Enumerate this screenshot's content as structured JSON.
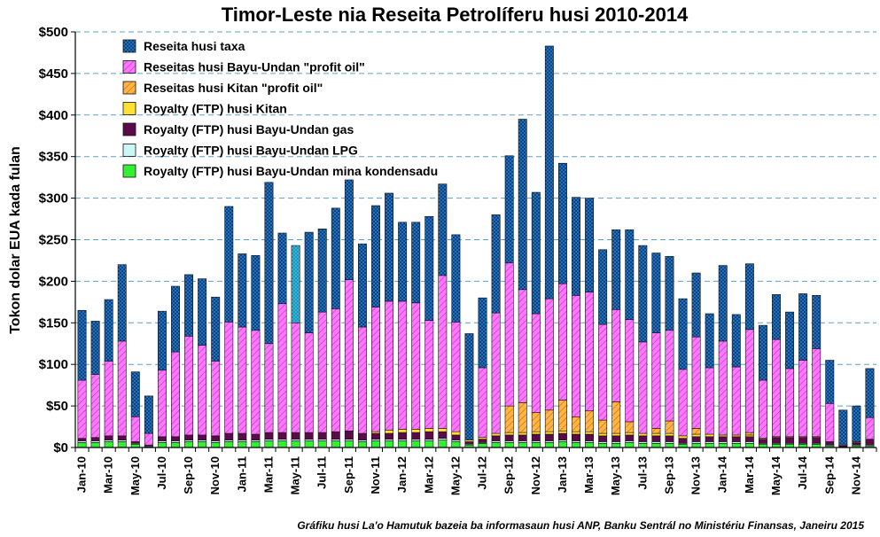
{
  "chart_data": {
    "type": "bar",
    "stacked": true,
    "title": "Timor-Leste nia Reseita Petrolíferu husi 2010-2014",
    "ylabel": "Tokon dolar EUA kada fulan",
    "source": "Gráfiku husi La'o Hamutuk bazeia ba informasaun husi ANP, Banku Sentrál no Ministériu Finansas, Janeiru 2015",
    "ylim": [
      0,
      500
    ],
    "yticks": [
      "$0",
      "$50",
      "$100",
      "$150",
      "$200",
      "$250",
      "$300",
      "$350",
      "$400",
      "$450",
      "$500"
    ],
    "ytick_values": [
      0,
      50,
      100,
      150,
      200,
      250,
      300,
      350,
      400,
      450,
      500
    ],
    "grid": "horizontal-dashed",
    "legend_position": "top-left",
    "categories": [
      "Jan-10",
      "Feb-10",
      "Mar-10",
      "Apr-10",
      "May-10",
      "Jun-10",
      "Jul-10",
      "Aug-10",
      "Sep-10",
      "Oct-10",
      "Nov-10",
      "Dec-10",
      "Jan-11",
      "Feb-11",
      "Mar-11",
      "Apr-11",
      "May-11",
      "Jun-11",
      "Jul-11",
      "Aug-11",
      "Sep-11",
      "Oct-11",
      "Nov-11",
      "Dec-11",
      "Jan-12",
      "Feb-12",
      "Mar-12",
      "Apr-12",
      "May-12",
      "Jun-12",
      "Jul-12",
      "Aug-12",
      "Sep-12",
      "Oct-12",
      "Nov-12",
      "Dec-12",
      "Jan-13",
      "Feb-13",
      "Mar-13",
      "Apr-13",
      "May-13",
      "Jun-13",
      "Jul-13",
      "Aug-13",
      "Sep-13",
      "Oct-13",
      "Nov-13",
      "Dec-13",
      "Jan-14",
      "Feb-14",
      "Mar-14",
      "Apr-14",
      "May-14",
      "Jun-14",
      "Jul-14",
      "Aug-14",
      "Sep-14",
      "Oct-14",
      "Nov-14",
      "Dec-14"
    ],
    "xtick_labels": [
      "Jan-10",
      "",
      "Mar-10",
      "",
      "May-10",
      "",
      "Jul-10",
      "",
      "Sep-10",
      "",
      "Nov-10",
      "",
      "Jan-11",
      "",
      "Mar-11",
      "",
      "May-11",
      "",
      "Jul-11",
      "",
      "Sep-11",
      "",
      "Nov-11",
      "",
      "Jan-12",
      "",
      "Mar-12",
      "",
      "May-12",
      "",
      "Jul-12",
      "",
      "Sep-12",
      "",
      "Nov-12",
      "",
      "Jan-13",
      "",
      "Mar-13",
      "",
      "May-13",
      "",
      "Jul-13",
      "",
      "Sep-13",
      "",
      "Nov-13",
      "",
      "Jan-14",
      "",
      "Mar-14",
      "",
      "May-14",
      "",
      "Jul-14",
      "",
      "Sep-14",
      "",
      "Nov-14",
      ""
    ],
    "series": [
      {
        "name": "Royalty (FTP) husi Bayu-Undan mina kondensadu",
        "color": "#33ee33",
        "pattern": "solid",
        "values": [
          6,
          6,
          7,
          7,
          4,
          1,
          6,
          6,
          7,
          7,
          6,
          7,
          7,
          7,
          8,
          8,
          8,
          8,
          8,
          8,
          8,
          7,
          8,
          8,
          8,
          8,
          8,
          9,
          7,
          3,
          5,
          6,
          6,
          6,
          6,
          6,
          7,
          6,
          6,
          5,
          5,
          6,
          5,
          5,
          5,
          4,
          5,
          5,
          5,
          5,
          5,
          4,
          4,
          4,
          4,
          4,
          2,
          1,
          2,
          2
        ]
      },
      {
        "name": "Royalty (FTP) husi Bayu-Undan LPG",
        "color": "#ccf5f5",
        "pattern": "solid",
        "values": [
          2,
          2,
          2,
          2,
          1,
          1,
          2,
          2,
          2,
          2,
          2,
          2,
          2,
          2,
          2,
          2,
          2,
          2,
          2,
          2,
          2,
          2,
          2,
          2,
          2,
          2,
          2,
          2,
          2,
          1,
          1,
          2,
          2,
          2,
          2,
          2,
          2,
          2,
          2,
          2,
          2,
          2,
          2,
          2,
          2,
          1,
          2,
          2,
          2,
          2,
          2,
          1,
          1,
          1,
          1,
          1,
          1,
          0,
          1,
          1
        ]
      },
      {
        "name": "Royalty (FTP) husi Bayu-Undan gas",
        "color": "#5b0a4a",
        "pattern": "solid",
        "values": [
          3,
          4,
          5,
          5,
          2,
          1,
          5,
          5,
          6,
          6,
          6,
          8,
          8,
          7,
          8,
          8,
          8,
          8,
          8,
          9,
          10,
          8,
          7,
          7,
          8,
          8,
          9,
          8,
          6,
          3,
          4,
          6,
          7,
          7,
          8,
          8,
          8,
          8,
          8,
          7,
          7,
          7,
          7,
          7,
          7,
          6,
          6,
          6,
          6,
          6,
          6,
          5,
          7,
          7,
          7,
          7,
          4,
          1,
          2,
          7
        ]
      },
      {
        "name": "Royalty (FTP) husi Kitan",
        "color": "#ffe033",
        "pattern": "solid",
        "values": [
          0,
          0,
          0,
          0,
          0,
          0,
          0,
          0,
          0,
          0,
          0,
          0,
          0,
          0,
          0,
          0,
          0,
          0,
          0,
          0,
          0,
          0,
          2,
          4,
          4,
          4,
          4,
          4,
          4,
          2,
          2,
          3,
          3,
          3,
          3,
          3,
          3,
          3,
          3,
          3,
          3,
          3,
          3,
          3,
          3,
          3,
          3,
          3,
          2,
          2,
          2,
          1,
          1,
          1,
          1,
          1,
          0,
          0,
          1,
          0
        ]
      },
      {
        "name": "Reseitas husi Kitan \"profit oil\"",
        "color": "#ff9900",
        "pattern": "hatch",
        "values": [
          0,
          0,
          0,
          0,
          0,
          0,
          0,
          0,
          0,
          0,
          0,
          0,
          0,
          0,
          0,
          0,
          0,
          0,
          0,
          0,
          0,
          0,
          0,
          0,
          0,
          0,
          0,
          0,
          0,
          0,
          0,
          0,
          32,
          36,
          23,
          26,
          37,
          18,
          25,
          16,
          38,
          13,
          0,
          6,
          15,
          0,
          7,
          0,
          0,
          0,
          3,
          0,
          0,
          0,
          0,
          0,
          0,
          0,
          0,
          0
        ]
      },
      {
        "name": "Reseitas husi Bayu-Undan \"profit oil\"",
        "color": "#ff66ff",
        "pattern": "hatch",
        "values": [
          70,
          76,
          90,
          114,
          30,
          14,
          80,
          102,
          119,
          108,
          90,
          134,
          128,
          125,
          107,
          155,
          132,
          120,
          145,
          148,
          182,
          128,
          150,
          155,
          154,
          152,
          130,
          184,
          132,
          0,
          84,
          145,
          172,
          136,
          119,
          134,
          140,
          146,
          143,
          115,
          111,
          123,
          110,
          115,
          109,
          80,
          110,
          80,
          113,
          82,
          124,
          70,
          117,
          82,
          92,
          106,
          46,
          1,
          1,
          26
        ]
      },
      {
        "name": "Reseita husi taxa",
        "color": "#1f6fbf",
        "pattern": "cross",
        "values": [
          84,
          64,
          74,
          92,
          54,
          45,
          71,
          79,
          74,
          80,
          77,
          139,
          88,
          90,
          194,
          85,
          93,
          121,
          100,
          121,
          120,
          100,
          122,
          130,
          95,
          97,
          125,
          110,
          105,
          128,
          84,
          118,
          129,
          205,
          146,
          304,
          145,
          118,
          113,
          90,
          96,
          108,
          116,
          96,
          89,
          85,
          77,
          65,
          91,
          63,
          79,
          66,
          54,
          68,
          80,
          64,
          52,
          42,
          43,
          59
        ]
      }
    ],
    "annotations": [
      {
        "category": "May-11",
        "note": "Reseita husi taxa segment shown in light cyan",
        "color": "#3cc3e8"
      }
    ]
  }
}
